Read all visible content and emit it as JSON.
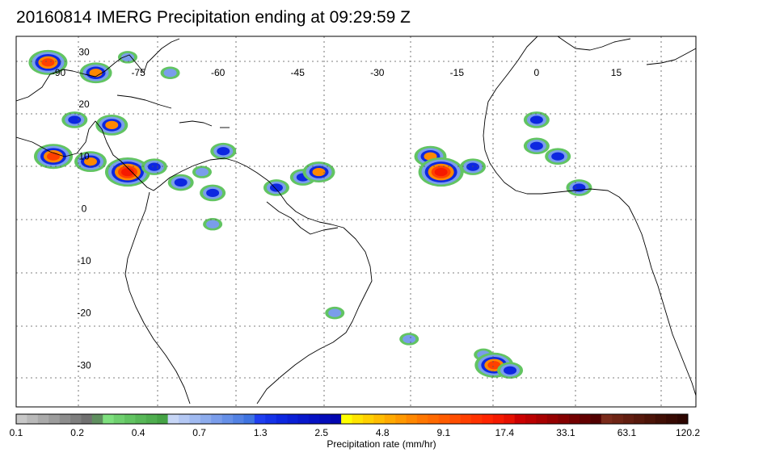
{
  "title": "20160814 IMERG Precipitation ending at 09:29:59 Z",
  "map": {
    "extent_lon": [
      -98,
      30
    ],
    "extent_lat": [
      -38,
      33
    ],
    "lon_labels": [
      {
        "text": "-90",
        "lon": -90
      },
      {
        "text": "-75",
        "lon": -75
      },
      {
        "text": "-60",
        "lon": -60
      },
      {
        "text": "-45",
        "lon": -45
      },
      {
        "text": "-30",
        "lon": -30
      },
      {
        "text": "-15",
        "lon": -15
      },
      {
        "text": "0",
        "lon": 0
      },
      {
        "text": "15",
        "lon": 15
      }
    ],
    "lat_labels": [
      {
        "text": "30",
        "lat": 30
      },
      {
        "text": "20",
        "lat": 20
      },
      {
        "text": "10",
        "lat": 10
      },
      {
        "text": "0",
        "lat": 0
      },
      {
        "text": "-10",
        "lat": -10
      },
      {
        "text": "-20",
        "lat": -20
      },
      {
        "text": "-30",
        "lat": -30
      }
    ],
    "gridlines": "dotted",
    "colors": {
      "frame": "#000000",
      "coast": "#000000",
      "grid": "#555555"
    }
  },
  "colorbar": {
    "title": "Precipitation rate (mm/hr)",
    "tick_labels": [
      "0.1",
      "0.2",
      "0.4",
      "0.7",
      "1.3",
      "2.5",
      "4.8",
      "9.1",
      "17.4",
      "33.1",
      "63.1",
      "120.2"
    ],
    "colors": [
      "#c8c8c8",
      "#b9b9b9",
      "#aaaaaa",
      "#9c9c9c",
      "#8d8d8d",
      "#7e7e7e",
      "#707070",
      "#5f8f5f",
      "#7ee07e",
      "#6fd06f",
      "#62c462",
      "#58b858",
      "#4fae4f",
      "#45a345",
      "#c7d6f6",
      "#b4c8f4",
      "#a0baf1",
      "#8daced",
      "#7a9deb",
      "#6690e8",
      "#5382e4",
      "#3f74e1",
      "#1f3ff0",
      "#1533e8",
      "#0d27e0",
      "#0a1fd6",
      "#0818cc",
      "#0612c4",
      "#040cba",
      "#0206b0",
      "#ffff00",
      "#ffe400",
      "#ffd000",
      "#ffbd00",
      "#ffaa00",
      "#ff9900",
      "#ff8800",
      "#ff7700",
      "#ff6a00",
      "#ff5c00",
      "#ff4e00",
      "#ff4000",
      "#ff3300",
      "#ff2500",
      "#f51a00",
      "#e61000",
      "#cc0000",
      "#bb0000",
      "#a80000",
      "#960000",
      "#850000",
      "#740000",
      "#630000",
      "#520000",
      "#7a2a1a",
      "#6e2414",
      "#621e10",
      "#57190c",
      "#4c1408",
      "#410f05",
      "#370a03",
      "#2d0601"
    ]
  },
  "precip_cells": [
    {
      "lon": -92,
      "lat": 28,
      "level": 5
    },
    {
      "lon": -83,
      "lat": 26,
      "level": 4
    },
    {
      "lon": -77,
      "lat": 29,
      "level": 2
    },
    {
      "lon": -69,
      "lat": 26,
      "level": 2
    },
    {
      "lon": -80,
      "lat": 16,
      "level": 4
    },
    {
      "lon": -87,
      "lat": 17,
      "level": 3
    },
    {
      "lon": -91,
      "lat": 10,
      "level": 5
    },
    {
      "lon": -84,
      "lat": 9,
      "level": 4
    },
    {
      "lon": -77,
      "lat": 7,
      "level": 6
    },
    {
      "lon": -72,
      "lat": 8,
      "level": 3
    },
    {
      "lon": -63,
      "lat": 7,
      "level": 2
    },
    {
      "lon": -59,
      "lat": 11,
      "level": 3
    },
    {
      "lon": -67,
      "lat": 5,
      "level": 3
    },
    {
      "lon": -61,
      "lat": 3,
      "level": 3
    },
    {
      "lon": -49,
      "lat": 4,
      "level": 3
    },
    {
      "lon": -44,
      "lat": 6,
      "level": 3
    },
    {
      "lon": -41,
      "lat": 7,
      "level": 4
    },
    {
      "lon": -20,
      "lat": 10,
      "level": 4
    },
    {
      "lon": -18,
      "lat": 7,
      "level": 6
    },
    {
      "lon": -12,
      "lat": 8,
      "level": 3
    },
    {
      "lon": 0,
      "lat": 17,
      "level": 3
    },
    {
      "lon": 0,
      "lat": 12,
      "level": 3
    },
    {
      "lon": 4,
      "lat": 10,
      "level": 3
    },
    {
      "lon": 8,
      "lat": 4,
      "level": 3
    },
    {
      "lon": -38,
      "lat": -20,
      "level": 2
    },
    {
      "lon": -24,
      "lat": -25,
      "level": 2
    },
    {
      "lon": -10,
      "lat": -28,
      "level": 2
    },
    {
      "lon": -8,
      "lat": -30,
      "level": 5
    },
    {
      "lon": -5,
      "lat": -31,
      "level": 3
    },
    {
      "lon": -61,
      "lat": -3,
      "level": 2
    }
  ]
}
